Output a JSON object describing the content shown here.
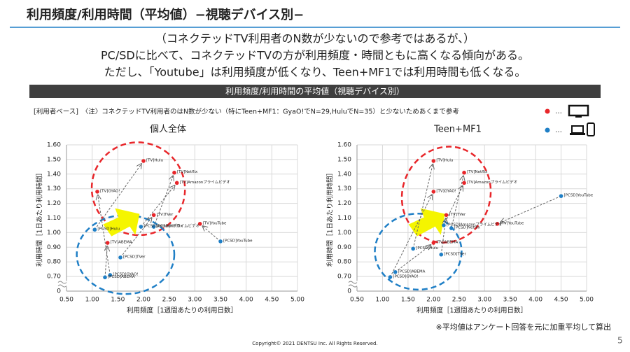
{
  "header": {
    "title": "利用頻度/利用時間（平均値）−視聴デバイス別−"
  },
  "description": [
    "（コネクテッドTV利用者のN数が少ないので参考ではあるが、）",
    "PC/SDに比べて、コネクテッドTVの方が利用頻度・時間ともに高くなる傾向がある。",
    "ただし、「Youtube」は利用頻度が低くなり、Teen+MF1では利用時間も低くなる。"
  ],
  "banner": "利用頻度/利用時間の平均値（視聴デバイス別）",
  "note": "[利用者ベース]　〈注〉コネクテッドTV利用者のはN数が少ない（特にTeen+MF1：GyaO!でN=29,HuluでN=35）と少ないためあくまで参考",
  "legend": [
    {
      "color": "#e8262a",
      "text": "…"
    },
    {
      "color": "#1f7fc6",
      "text": "…"
    }
  ],
  "chart_data": [
    {
      "type": "scatter",
      "title": "個人全体",
      "xlabel": "利用頻度［1週間あたりの利用日数］",
      "ylabel": "利用時間［1日あたり利用時間］",
      "xlim": [
        0.5,
        5
      ],
      "xticks": [
        {
          "value": 0.5,
          "label": "0.50"
        },
        {
          "value": 1,
          "label": "1.00"
        },
        {
          "value": 1.5,
          "label": "1.50"
        },
        {
          "value": 2,
          "label": "2.00"
        },
        {
          "value": 2.5,
          "label": "2.50"
        },
        {
          "value": 3,
          "label": "3.00"
        },
        {
          "value": 3.5,
          "label": "3.50"
        },
        {
          "value": 4,
          "label": "4.00"
        },
        {
          "value": 4.5,
          "label": "4.50"
        },
        {
          "value": 5,
          "label": "5.00"
        }
      ],
      "ylim": [
        0,
        1.6
      ],
      "y_break": true,
      "yticks": [
        0,
        {
          "value": 0.7,
          "label": "0.70"
        },
        {
          "value": 0.8,
          "label": "0.80"
        },
        {
          "value": 0.9,
          "label": "0.90"
        },
        {
          "value": 1,
          "label": "1.00"
        },
        {
          "value": 1.1,
          "label": "1.10"
        },
        {
          "value": 1.2,
          "label": "1.20"
        },
        {
          "value": 1.3,
          "label": "1.30"
        },
        {
          "value": 1.4,
          "label": "1.40"
        },
        {
          "value": 1.5,
          "label": "1.50"
        },
        {
          "value": 1.6,
          "label": "1.60"
        }
      ],
      "series": [
        {
          "color": "#e8262a",
          "x": [
            2.0,
            2.6,
            2.65,
            1.1,
            2.2,
            1.3,
            3.1
          ],
          "y": [
            1.49,
            1.41,
            1.34,
            1.28,
            1.12,
            0.93,
            1.06
          ],
          "labels": [
            "[TV]Hulu",
            "[TV]Netflix",
            "[TV]Amazonプライムビデオ",
            "[TV]GYAO!",
            "[TV]TVer",
            "[TV]ABEMA",
            "[TV]YouTube"
          ]
        },
        {
          "color": "#1f7fc6",
          "x": [
            1.05,
            2.2,
            1.95,
            1.35,
            1.55,
            1.25,
            3.5
          ],
          "y": [
            1.02,
            1.04,
            1.04,
            0.71,
            0.83,
            0.66,
            0.94
          ],
          "labels": [
            "[PCSD]Hulu",
            "[PCSD]Netflix",
            "[PCSD]Amazonプライムビデオ",
            "[PCSD]GYAO!",
            "[PCSD]TVer",
            "[PCSD]ABEMA",
            "[PCSD]YouTube"
          ]
        }
      ]
    },
    {
      "type": "scatter",
      "title": "Teen+MF1",
      "xlabel": "利用頻度［1週間あたりの利用日数］",
      "ylabel": "利用時間［1日あたり利用時間］",
      "xlim": [
        0.5,
        5
      ],
      "xticks": [
        {
          "value": 0.5,
          "label": "0.50"
        },
        {
          "value": 1,
          "label": "1.00"
        },
        {
          "value": 1.5,
          "label": "1.50"
        },
        {
          "value": 2,
          "label": "2.00"
        },
        {
          "value": 2.5,
          "label": "2.50"
        },
        {
          "value": 3,
          "label": "3.00"
        },
        {
          "value": 3.5,
          "label": "3.50"
        },
        {
          "value": 4,
          "label": "4.00"
        },
        {
          "value": 4.5,
          "label": "4.50"
        },
        {
          "value": 5,
          "label": "5.00"
        }
      ],
      "ylim": [
        0,
        1.6
      ],
      "y_break": true,
      "yticks": [
        0,
        {
          "value": 0.7,
          "label": "0.70"
        },
        {
          "value": 0.8,
          "label": "0.80"
        },
        {
          "value": 0.9,
          "label": "0.90"
        },
        {
          "value": 1,
          "label": "1.00"
        },
        {
          "value": 1.1,
          "label": "1.10"
        },
        {
          "value": 1.2,
          "label": "1.20"
        },
        {
          "value": 1.3,
          "label": "1.30"
        },
        {
          "value": 1.4,
          "label": "1.40"
        },
        {
          "value": 1.5,
          "label": "1.50"
        },
        {
          "value": 1.6,
          "label": "1.60"
        }
      ],
      "series": [
        {
          "color": "#e8262a",
          "x": [
            2.0,
            2.6,
            2.6,
            2.0,
            2.25,
            2.0,
            3.25
          ],
          "y": [
            1.49,
            1.41,
            1.34,
            1.28,
            1.12,
            0.93,
            1.06
          ],
          "labels": [
            "[TV]Hulu",
            "[TV]Netflix",
            "[TV]Amazonプライムビデオ",
            "[TV]GYAO!",
            "[TV]TVer",
            "[TV]ABEMA",
            "[TV]YouTube"
          ]
        },
        {
          "color": "#1f7fc6",
          "x": [
            1.6,
            2.35,
            2.2,
            1.15,
            2.15,
            1.25,
            4.5
          ],
          "y": [
            0.89,
            1.03,
            1.05,
            0.67,
            0.85,
            0.73,
            1.25
          ],
          "labels": [
            "[PCSD]Hulu",
            "[PCSD]Netflix",
            "[PCSD]Amazonプライムビデオ",
            "[PCSD]GYAO!",
            "[PCSD]TVer",
            "[PCSD]ABEMA",
            "[PCSD]YouTube"
          ]
        }
      ]
    }
  ],
  "footer": {
    "note": "※平均値はアンケート回答を元に加重平均して算出",
    "copyright": "Copyright© 2021 DENTSU Inc. All Rights Reserved.",
    "page": "5"
  }
}
